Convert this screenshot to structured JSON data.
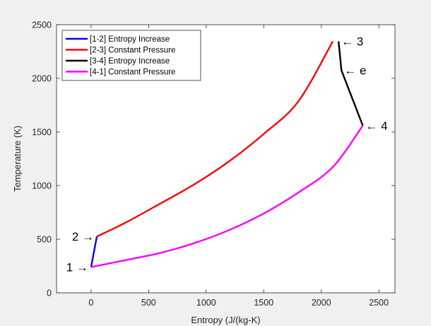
{
  "chart_data": {
    "type": "line",
    "xlabel": "Entropy (J/(kg-K)",
    "ylabel": "Temperature (K)",
    "xlim": [
      -300,
      2640
    ],
    "ylim": [
      0,
      2500
    ],
    "xticks": [
      0,
      500,
      1000,
      1500,
      2000,
      2500
    ],
    "yticks": [
      0,
      500,
      1000,
      1500,
      2000,
      2500
    ],
    "grid": false,
    "legend_position": "top-left",
    "series": [
      {
        "name": "[1-2] Entropy Increase",
        "color": "#0000ff",
        "x": [
          0,
          50
        ],
        "y": [
          240,
          525
        ]
      },
      {
        "name": "[2-3] Constant Pressure",
        "color": "#ff0000",
        "x": [
          50,
          300,
          600,
          900,
          1200,
          1500,
          1800,
          2100
        ],
        "y": [
          525,
          655,
          832,
          1014,
          1227,
          1482,
          1785,
          2345
        ]
      },
      {
        "name": "[3-4] Entropy Increase",
        "color": "#000000",
        "x": [
          2150,
          2175,
          2360
        ],
        "y": [
          2345,
          2075,
          1560
        ]
      },
      {
        "name": "[4-1] Constant Pressure",
        "color": "#ff00ff",
        "x": [
          0,
          300,
          600,
          900,
          1200,
          1500,
          1800,
          2100,
          2360
        ],
        "y": [
          240,
          305,
          372,
          465,
          586,
          740,
          935,
          1174,
          1560
        ]
      }
    ],
    "annotations": [
      {
        "text": "1",
        "arrow": "→",
        "x": 0,
        "y": 240,
        "side": "left"
      },
      {
        "text": "2",
        "arrow": "→",
        "x": 50,
        "y": 525,
        "side": "left"
      },
      {
        "text": "3",
        "arrow": "←",
        "x": 2150,
        "y": 2345,
        "side": "right"
      },
      {
        "text": "e",
        "arrow": "←",
        "x": 2175,
        "y": 2075,
        "side": "right"
      },
      {
        "text": "4",
        "arrow": "←",
        "x": 2360,
        "y": 1560,
        "side": "right"
      }
    ]
  }
}
